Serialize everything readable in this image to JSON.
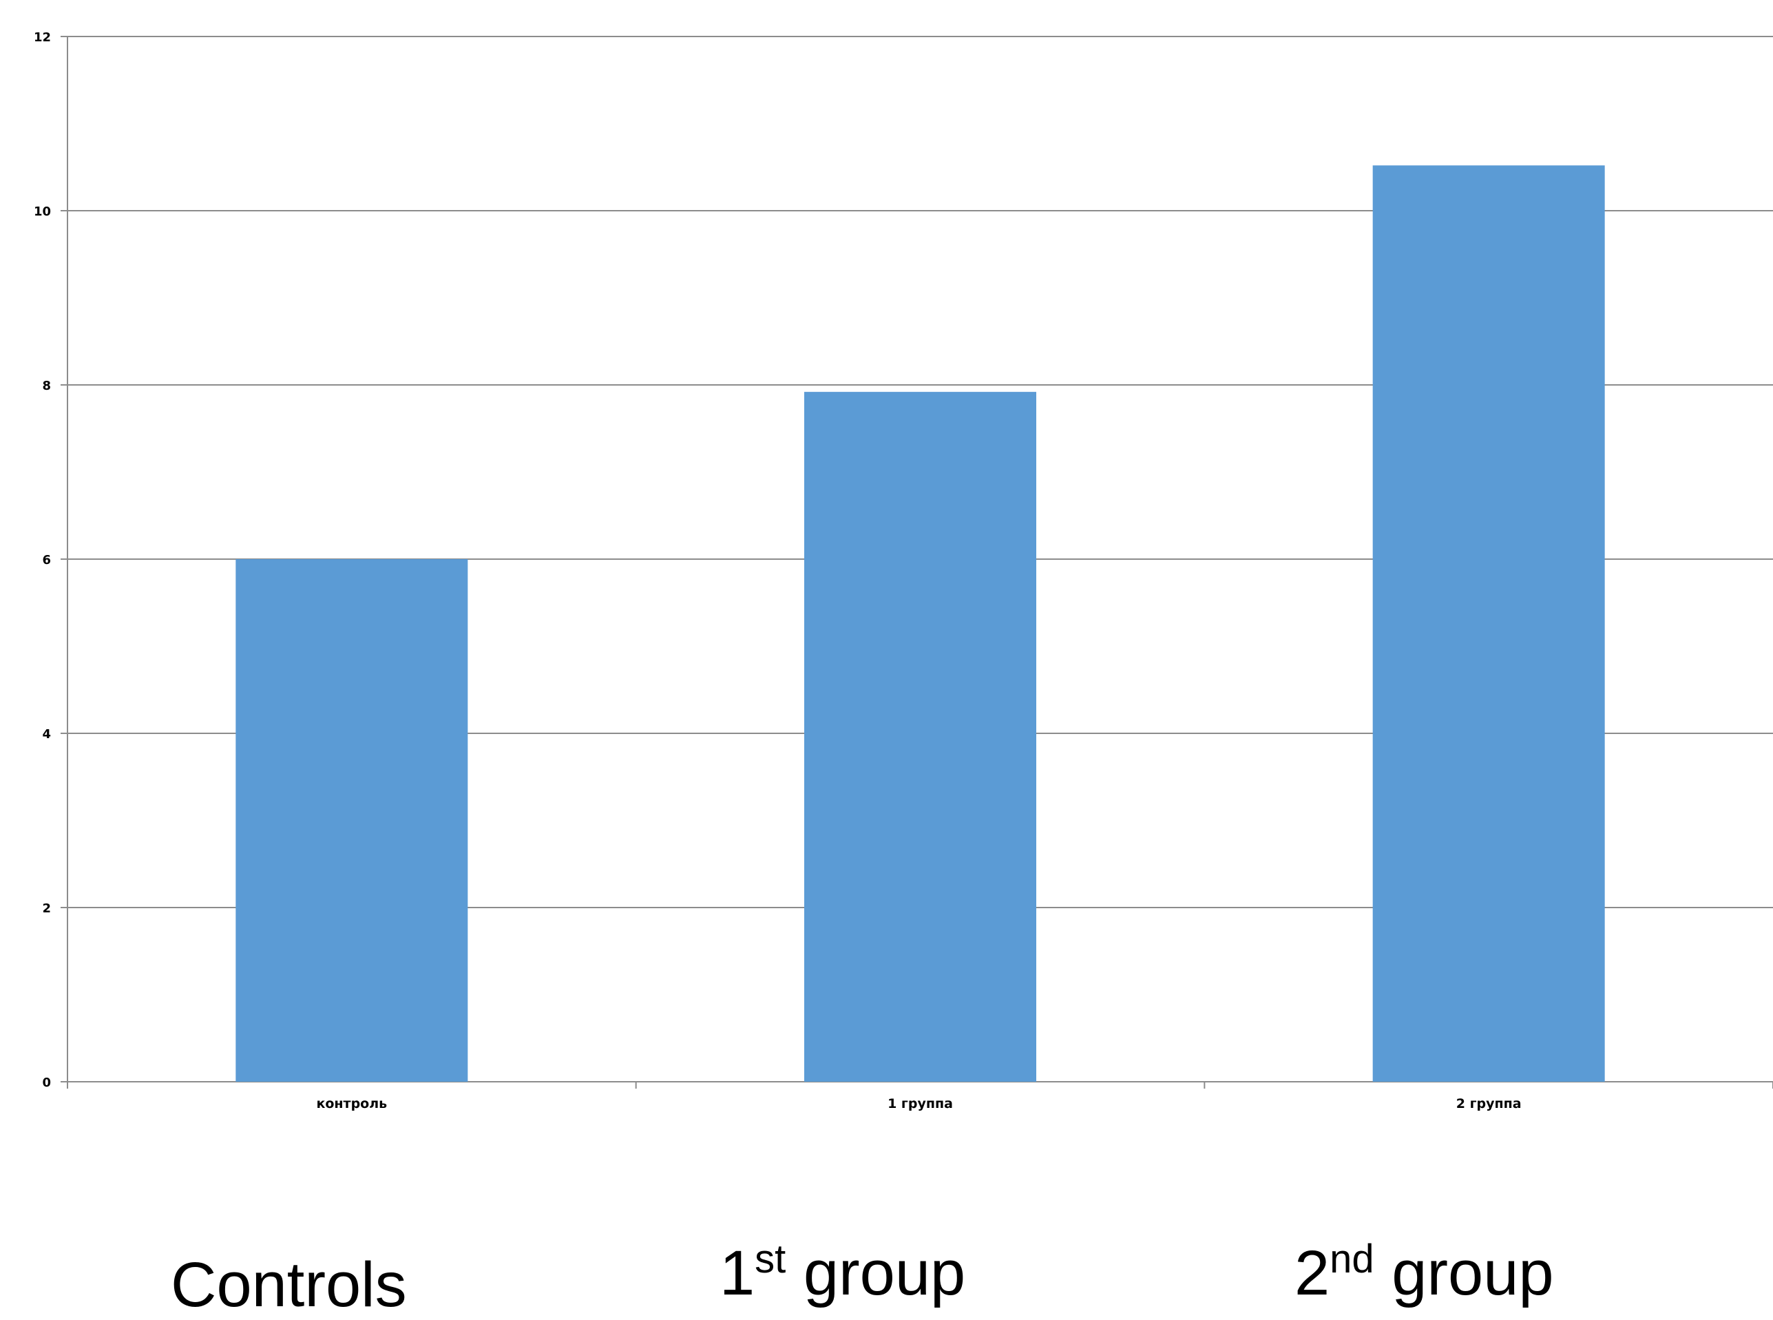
{
  "chart_data": {
    "type": "bar",
    "categories": [
      "контроль",
      "1 группа",
      "2 группа"
    ],
    "values": [
      6.0,
      7.92,
      10.52
    ],
    "ylim": [
      0,
      12
    ],
    "yticks": [
      0,
      2,
      4,
      6,
      8,
      10,
      12
    ],
    "grid": true,
    "bar_color": "#5B9BD5",
    "grid_color": "#8C8C8C",
    "title": "",
    "xlabel": "",
    "ylabel": ""
  },
  "captions": {
    "controls": "Controls",
    "group1_number": "1",
    "group1_suffix": "st",
    "group1_word": " group",
    "group2_number": "2",
    "group2_suffix": "nd",
    "group2_word": " group"
  }
}
